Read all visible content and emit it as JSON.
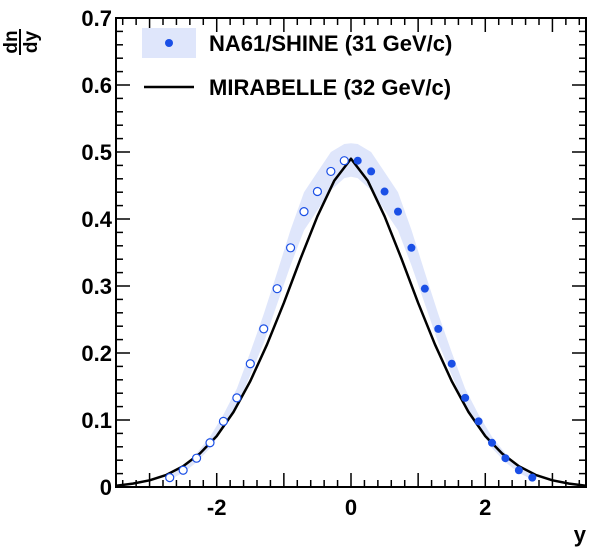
{
  "chart_data": {
    "type": "scatter",
    "xlabel": "y",
    "ylabel_numerator": "dn",
    "ylabel_denominator": "dy",
    "xlim": [
      -3.5,
      3.5
    ],
    "ylim": [
      0,
      0.7
    ],
    "x_ticks": [
      "-2",
      "0",
      "2"
    ],
    "y_ticks": [
      "0",
      "0.1",
      "0.2",
      "0.3",
      "0.4",
      "0.5",
      "0.6",
      "0.7"
    ],
    "legend_position": "top-left",
    "colors": {
      "data": "#1a4fe6",
      "band": "#dfe6fb",
      "curve": "#000000"
    },
    "series": [
      {
        "name": "NA61/SHINE (31 GeV/c)",
        "kind": "points",
        "x_filled": [
          0.1,
          0.3,
          0.5,
          0.7,
          0.9,
          1.1,
          1.3,
          1.5,
          1.7,
          1.9,
          2.1,
          2.3,
          2.5,
          2.7
        ],
        "y_filled": [
          0.487,
          0.471,
          0.441,
          0.411,
          0.357,
          0.296,
          0.236,
          0.184,
          0.133,
          0.098,
          0.066,
          0.043,
          0.025,
          0.014
        ],
        "x_reflected": [
          -0.1,
          -0.3,
          -0.5,
          -0.7,
          -0.9,
          -1.1,
          -1.3,
          -1.5,
          -1.7,
          -1.9,
          -2.1,
          -2.3,
          -2.5,
          -2.7
        ],
        "y_reflected": [
          0.487,
          0.471,
          0.441,
          0.411,
          0.357,
          0.296,
          0.236,
          0.184,
          0.133,
          0.098,
          0.066,
          0.043,
          0.025,
          0.014
        ]
      },
      {
        "name": "MIRABELLE (32 GeV/c)",
        "kind": "line",
        "x": [
          -3.5,
          -3.25,
          -3.0,
          -2.75,
          -2.5,
          -2.25,
          -2.0,
          -1.75,
          -1.5,
          -1.25,
          -1.0,
          -0.75,
          -0.5,
          -0.25,
          0.0,
          0.25,
          0.5,
          0.75,
          1.0,
          1.25,
          1.5,
          1.75,
          2.0,
          2.25,
          2.5,
          2.75,
          3.0,
          3.25,
          3.5
        ],
        "y": [
          0.002,
          0.005,
          0.01,
          0.018,
          0.031,
          0.05,
          0.076,
          0.112,
          0.158,
          0.213,
          0.275,
          0.341,
          0.404,
          0.457,
          0.49,
          0.457,
          0.404,
          0.341,
          0.275,
          0.213,
          0.158,
          0.112,
          0.076,
          0.05,
          0.031,
          0.018,
          0.01,
          0.005,
          0.002
        ]
      }
    ],
    "band": {
      "x": [
        -2.7,
        -2.5,
        -2.3,
        -2.1,
        -1.9,
        -1.7,
        -1.5,
        -1.3,
        -1.1,
        -0.9,
        -0.7,
        -0.5,
        -0.3,
        -0.1,
        0.0,
        0.1,
        0.3,
        0.5,
        0.7,
        0.9,
        1.1,
        1.3,
        1.5,
        1.7,
        1.9,
        2.1,
        2.3,
        2.5,
        2.7
      ],
      "lower": [
        0.011,
        0.021,
        0.037,
        0.058,
        0.088,
        0.12,
        0.167,
        0.215,
        0.273,
        0.331,
        0.383,
        0.413,
        0.443,
        0.461,
        0.463,
        0.461,
        0.443,
        0.413,
        0.383,
        0.331,
        0.273,
        0.215,
        0.167,
        0.12,
        0.088,
        0.058,
        0.037,
        0.021,
        0.011
      ],
      "upper": [
        0.017,
        0.03,
        0.05,
        0.075,
        0.108,
        0.147,
        0.201,
        0.258,
        0.32,
        0.384,
        0.44,
        0.47,
        0.5,
        0.512,
        0.513,
        0.512,
        0.5,
        0.47,
        0.44,
        0.384,
        0.32,
        0.258,
        0.201,
        0.147,
        0.108,
        0.075,
        0.05,
        0.03,
        0.017
      ]
    }
  }
}
